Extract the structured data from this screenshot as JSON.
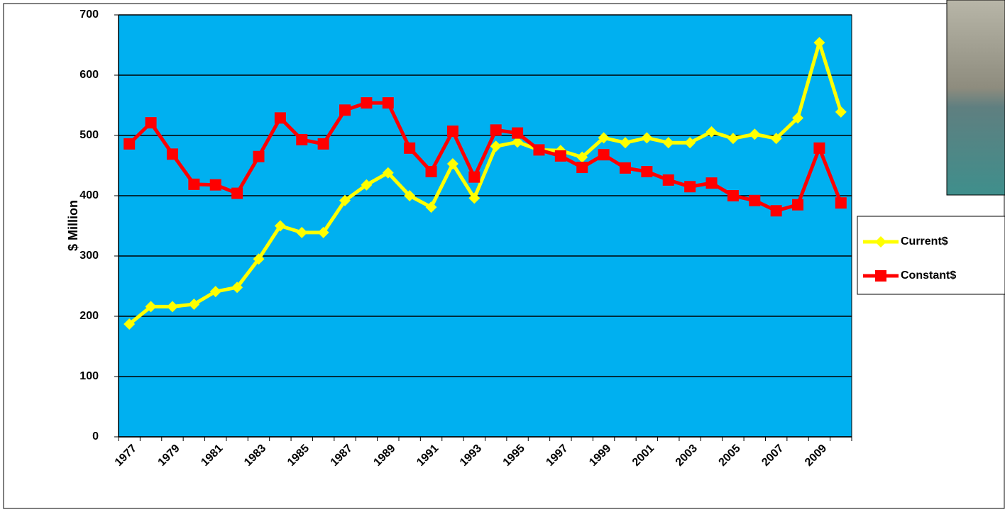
{
  "chart_data": {
    "type": "line",
    "y_label": "$ Million",
    "categories": [
      "1977",
      null,
      "1979",
      null,
      "1981",
      null,
      "1983",
      null,
      "1985",
      null,
      "1987",
      null,
      "1989",
      null,
      "1991",
      null,
      "1993",
      null,
      "1995",
      null,
      "1997",
      null,
      "1999",
      null,
      "2001",
      null,
      "2003",
      null,
      "2005",
      null,
      "2007",
      null,
      "2009",
      null
    ],
    "series": [
      {
        "name": "Current$",
        "color": "#ffff00",
        "marker": "diamond",
        "values": [
          187,
          216,
          216,
          220,
          241,
          248,
          295,
          350,
          339,
          339,
          392,
          418,
          438,
          400,
          381,
          453,
          396,
          482,
          489,
          476,
          475,
          464,
          496,
          488,
          496,
          488,
          488,
          506,
          495,
          502,
          495,
          529,
          654,
          539
        ]
      },
      {
        "name": "Constant$",
        "color": "#ff0000",
        "marker": "square",
        "values": [
          486,
          521,
          469,
          419,
          418,
          404,
          465,
          529,
          493,
          486,
          542,
          554,
          554,
          479,
          440,
          507,
          431,
          509,
          504,
          476,
          466,
          447,
          468,
          446,
          440,
          426,
          415,
          421,
          400,
          392,
          375,
          385,
          479,
          388
        ]
      }
    ],
    "ylim": [
      0,
      700
    ],
    "yticks": [
      0,
      100,
      200,
      300,
      400,
      500,
      600,
      700
    ],
    "grid": true,
    "plot_background": "#00b0f0",
    "legend_position": "right"
  }
}
